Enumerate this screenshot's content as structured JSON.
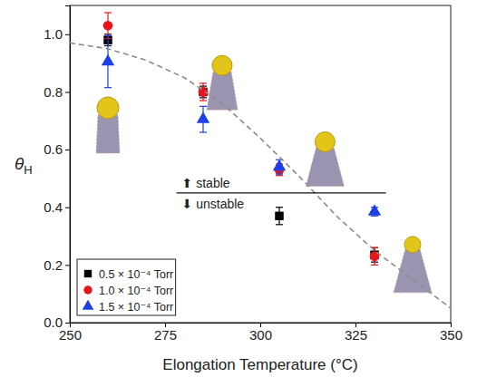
{
  "chart_data": {
    "type": "scatter",
    "x_label": "Elongation Temperature (°C)",
    "y_label": "θH",
    "xlim": [
      250,
      350
    ],
    "xticks": [
      250,
      275,
      300,
      325,
      350
    ],
    "ylim": [
      0,
      1.1
    ],
    "yticks": [
      {
        "value": 0,
        "label": "0.0"
      },
      0.2,
      0.4,
      0.6,
      0.8,
      {
        "value": 1,
        "label": "1.0"
      }
    ],
    "legend": "lower left",
    "series": [
      {
        "name": "0.5 × 10⁻⁴ Torr",
        "color": "#000000",
        "marker": "square",
        "x": [
          260,
          285,
          305,
          330
        ],
        "values": [
          0.98,
          0.8,
          0.37,
          0.235
        ],
        "errors": [
          0.02,
          0.02,
          0.03,
          0.025
        ]
      },
      {
        "name": "1.0 × 10⁻⁴ Torr",
        "color": "#e8141b",
        "marker": "circle",
        "x": [
          260,
          285,
          305,
          330
        ],
        "values": [
          1.03,
          0.8,
          0.53,
          0.23
        ],
        "errors": [
          0.045,
          0.03,
          0.02,
          0.03
        ]
      },
      {
        "name": "1.5 × 10⁻⁴ Torr",
        "color": "#1f3fe6",
        "marker": "triangle",
        "x": [
          260,
          285,
          305,
          330
        ],
        "values": [
          0.905,
          0.705,
          0.54,
          0.385
        ],
        "errors": [
          0.09,
          0.045,
          0.025,
          0.015
        ]
      },
      {
        "type": "line",
        "line_style": "dashed",
        "color": "#8c8c8c",
        "x": [
          250,
          260,
          270,
          280,
          290,
          300,
          310,
          320,
          330,
          340,
          350
        ],
        "values": [
          0.97,
          0.95,
          0.91,
          0.85,
          0.76,
          0.64,
          0.51,
          0.37,
          0.25,
          0.15,
          0.05
        ]
      }
    ],
    "annotations": {
      "line": {
        "x": [
          278,
          333
        ],
        "y": 0.45
      },
      "texts": [
        "⬆ stable",
        "⬇ unstable"
      ]
    }
  }
}
